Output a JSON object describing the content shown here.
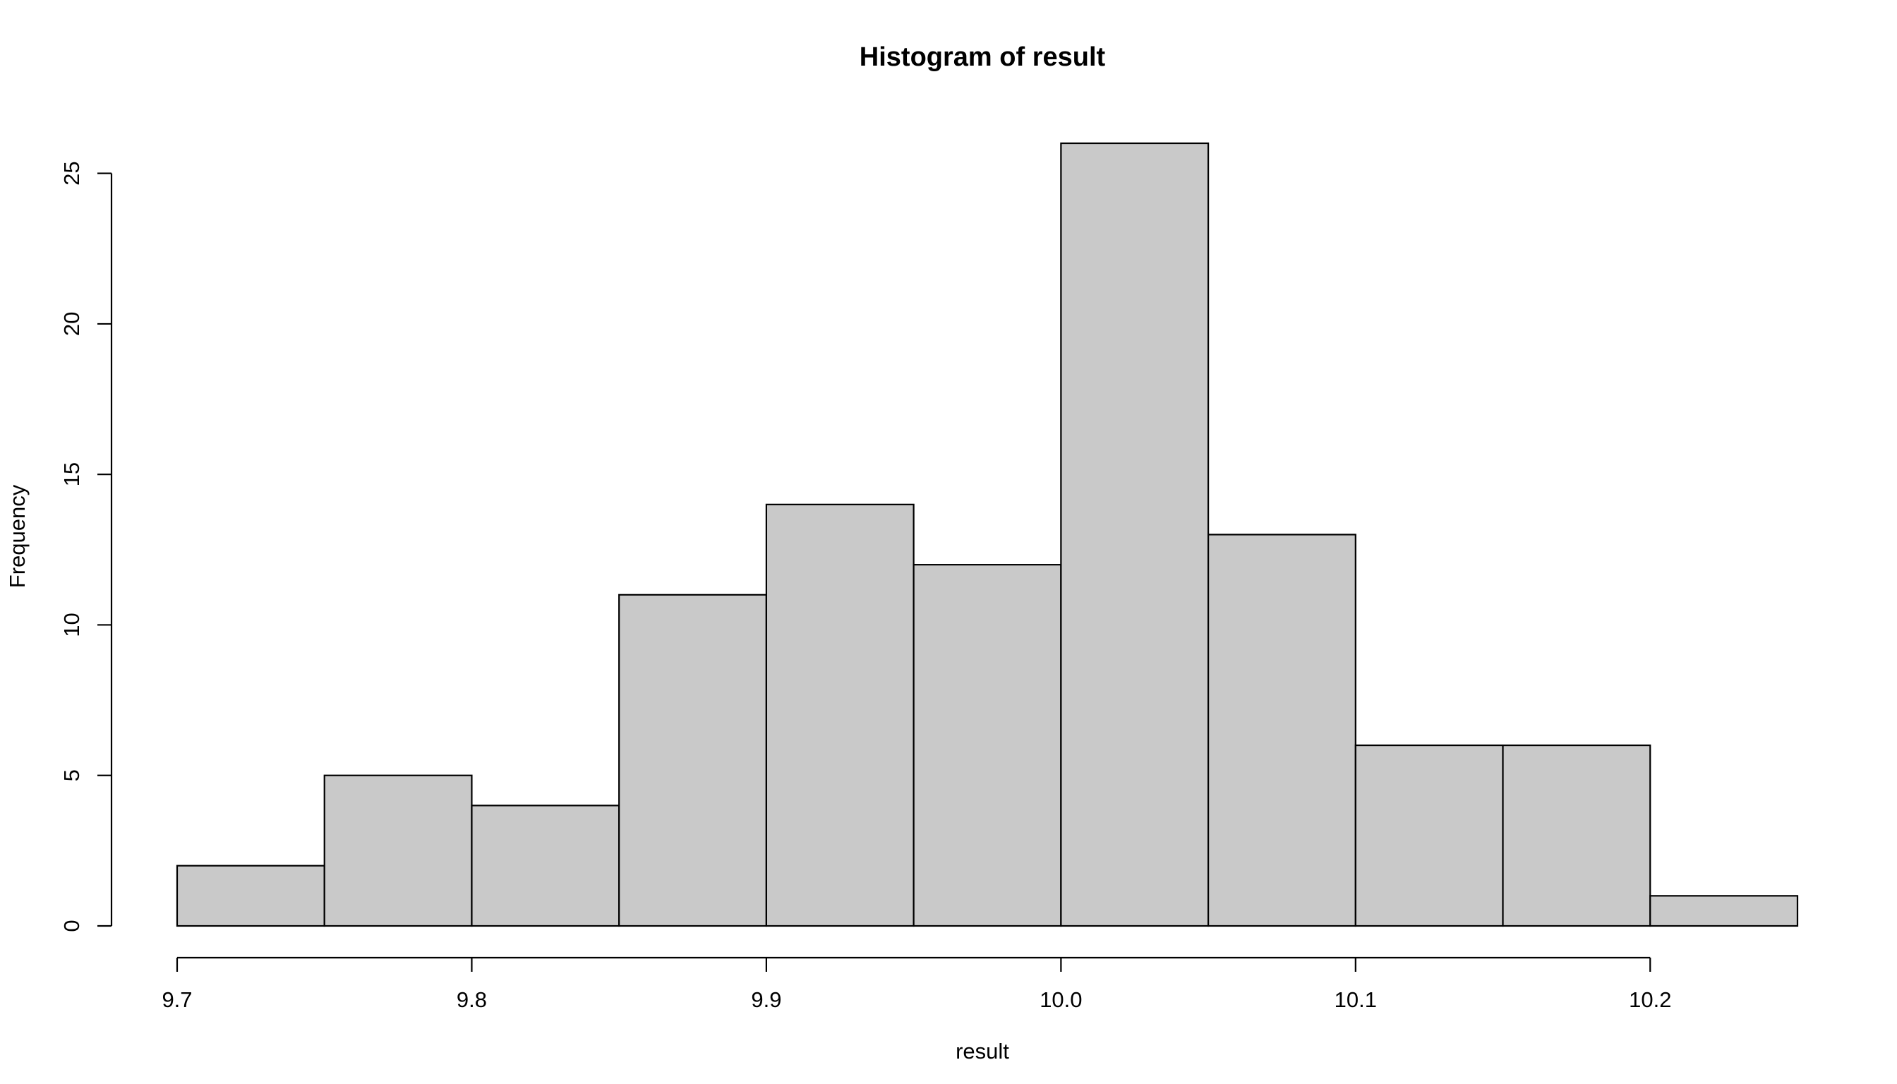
{
  "chart_data": {
    "type": "bar",
    "title": "Histogram of result",
    "xlabel": "result",
    "ylabel": "Frequency",
    "bins": [
      {
        "from": 9.7,
        "to": 9.75,
        "count": 2
      },
      {
        "from": 9.75,
        "to": 9.8,
        "count": 5
      },
      {
        "from": 9.8,
        "to": 9.85,
        "count": 4
      },
      {
        "from": 9.85,
        "to": 9.9,
        "count": 11
      },
      {
        "from": 9.9,
        "to": 9.95,
        "count": 14
      },
      {
        "from": 9.95,
        "to": 10.0,
        "count": 12
      },
      {
        "from": 10.0,
        "to": 10.05,
        "count": 26
      },
      {
        "from": 10.05,
        "to": 10.1,
        "count": 13
      },
      {
        "from": 10.1,
        "to": 10.15,
        "count": 6
      },
      {
        "from": 10.15,
        "to": 10.2,
        "count": 6
      },
      {
        "from": 10.2,
        "to": 10.25,
        "count": 1
      }
    ],
    "x_ticks": [
      {
        "value": 9.7,
        "label": "9.7"
      },
      {
        "value": 9.8,
        "label": "9.8"
      },
      {
        "value": 9.9,
        "label": "9.9"
      },
      {
        "value": 10.0,
        "label": "10.0"
      },
      {
        "value": 10.1,
        "label": "10.1"
      },
      {
        "value": 10.2,
        "label": "10.2"
      }
    ],
    "y_ticks": [
      {
        "value": 0,
        "label": "0"
      },
      {
        "value": 5,
        "label": "5"
      },
      {
        "value": 10,
        "label": "10"
      },
      {
        "value": 15,
        "label": "15"
      },
      {
        "value": 20,
        "label": "20"
      },
      {
        "value": 25,
        "label": "25"
      }
    ],
    "xlim": [
      9.7,
      10.25
    ],
    "ylim": [
      0,
      26
    ],
    "grid": false,
    "bar_color": "#c9c9c9",
    "edge_color": "#000000"
  }
}
